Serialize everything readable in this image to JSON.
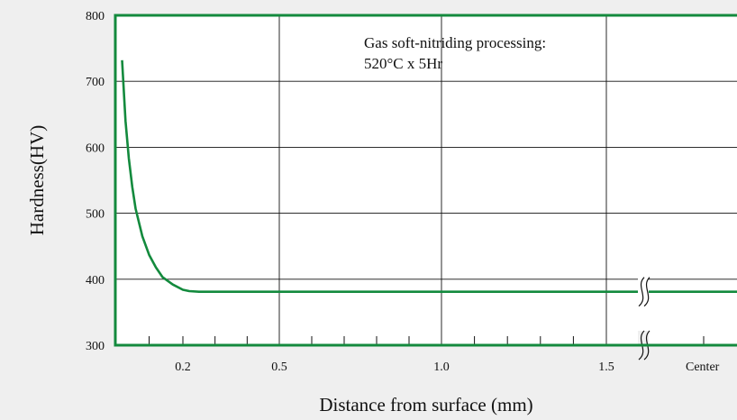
{
  "chart_data": {
    "type": "line",
    "title": "",
    "xlabel": "Distance from surface (mm)",
    "ylabel": "Hardness(HV)",
    "ylim": [
      300,
      800
    ],
    "yticks": [
      300,
      400,
      500,
      600,
      700,
      800
    ],
    "xticks": [
      {
        "x": 0.2,
        "label": "0.2"
      },
      {
        "x": 0.5,
        "label": "0.5"
      },
      {
        "x": 1.0,
        "label": "1.0"
      },
      {
        "x": 1.5,
        "label": "1.5"
      },
      {
        "x": 1.8,
        "label": "Center"
      }
    ],
    "xlim": [
      0.0,
      2.0
    ],
    "grid": true,
    "axis_break": {
      "x": 1.55
    },
    "annotation": [
      "Gas soft-nitriding processing:",
      "520°C x 5Hr"
    ],
    "series": [
      {
        "color": "#138a3d",
        "x": [
          0.02,
          0.03,
          0.04,
          0.05,
          0.06,
          0.08,
          0.1,
          0.12,
          0.14,
          0.17,
          0.2,
          0.22,
          0.25,
          0.4,
          0.6,
          0.8,
          1.0,
          1.2,
          1.5,
          1.8,
          2.0
        ],
        "y": [
          732,
          640,
          583,
          540,
          507,
          465,
          437,
          418,
          403,
          392,
          384,
          382,
          381,
          381,
          381,
          381,
          381,
          381,
          381,
          381,
          381
        ]
      }
    ]
  },
  "colors": {
    "frame": "#138a3d",
    "grid": "#111111",
    "series": "#138a3d",
    "background": "#efefef"
  }
}
